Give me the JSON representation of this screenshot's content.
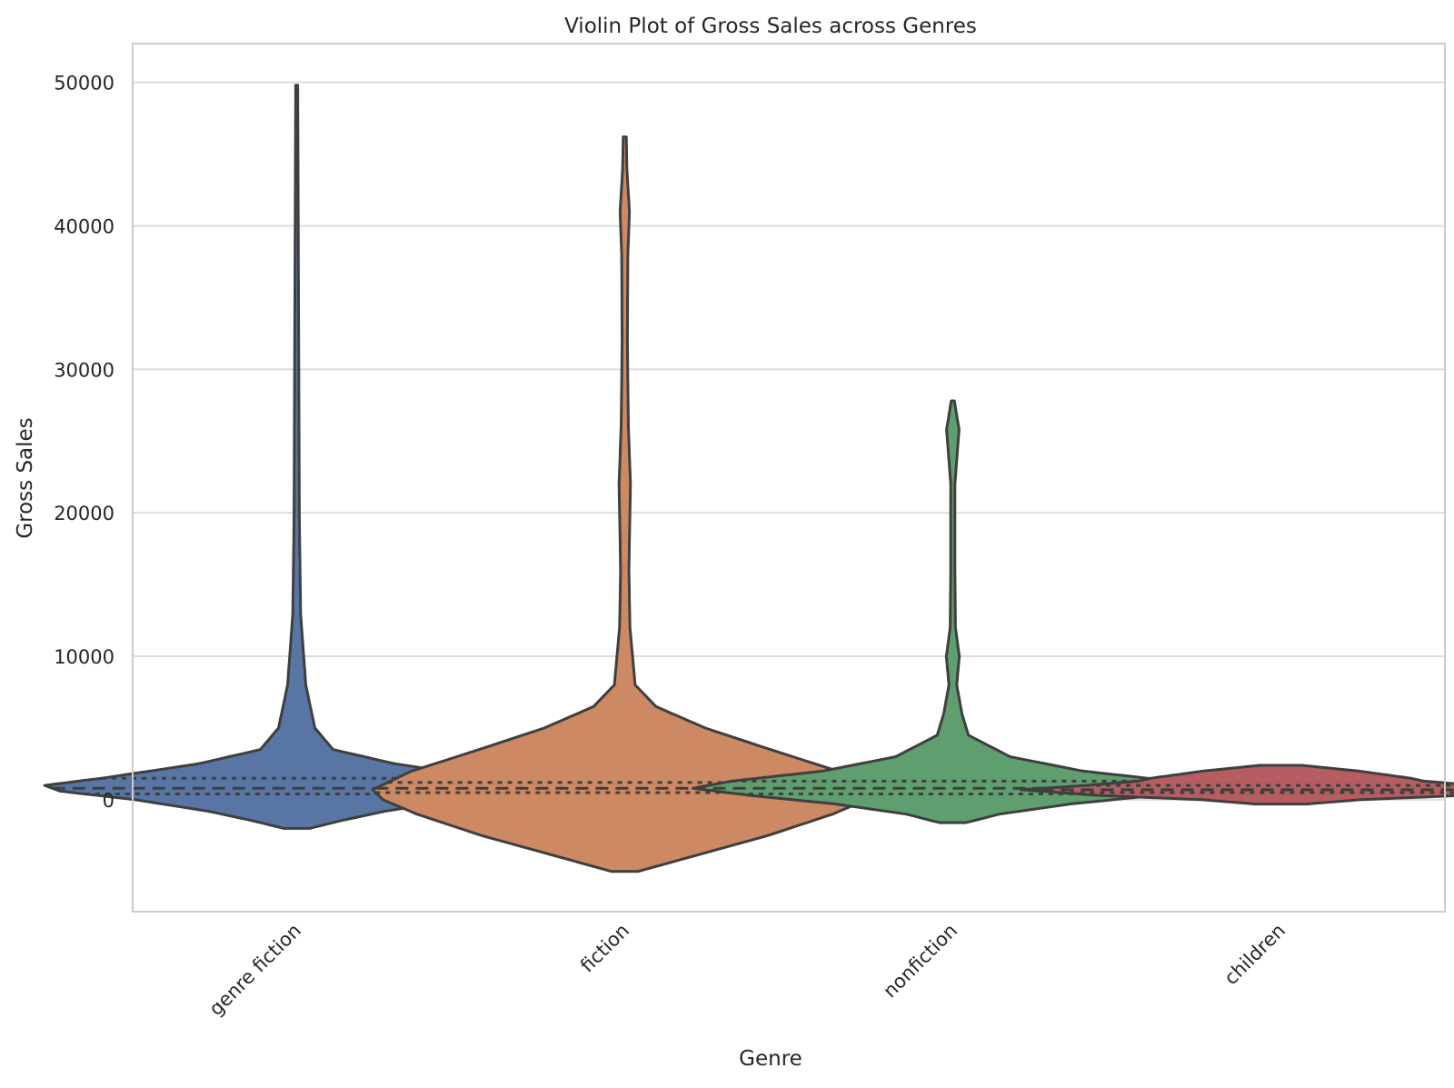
{
  "chart_data": {
    "type": "violin",
    "title": "Violin Plot of Gross Sales across Genres",
    "xlabel": "Genre",
    "ylabel": "Gross Sales",
    "ylim": [
      -7800,
      52700
    ],
    "yticks": [
      0,
      10000,
      20000,
      30000,
      40000,
      50000
    ],
    "grid": "horizontal",
    "inner": "quartile",
    "categories": [
      "genre fiction",
      "fiction",
      "nonfiction",
      "children"
    ],
    "series": [
      {
        "category": "genre fiction",
        "color": "#5875a4",
        "range": [
          -2000,
          49800
        ],
        "quartiles": [
          400,
          800,
          1500
        ],
        "profile": [
          [
            -2000,
            0.05
          ],
          [
            -1500,
            0.16
          ],
          [
            -800,
            0.34
          ],
          [
            0,
            0.62
          ],
          [
            600,
            0.91
          ],
          [
            1000,
            0.97
          ],
          [
            1500,
            0.75
          ],
          [
            2500,
            0.38
          ],
          [
            3500,
            0.14
          ],
          [
            5000,
            0.07
          ],
          [
            8000,
            0.035
          ],
          [
            13000,
            0.015
          ],
          [
            20000,
            0.01
          ],
          [
            30000,
            0.008
          ],
          [
            40000,
            0.006
          ],
          [
            49800,
            0.004
          ]
        ]
      },
      {
        "category": "fiction",
        "color": "#cc8963",
        "range": [
          -5000,
          46200
        ],
        "quartiles": [
          500,
          800,
          1200
        ],
        "profile": [
          [
            -5000,
            0.05
          ],
          [
            -4000,
            0.25
          ],
          [
            -2500,
            0.55
          ],
          [
            -1000,
            0.8
          ],
          [
            0,
            0.93
          ],
          [
            700,
            0.97
          ],
          [
            2000,
            0.82
          ],
          [
            3500,
            0.56
          ],
          [
            5000,
            0.31
          ],
          [
            6500,
            0.12
          ],
          [
            8000,
            0.04
          ],
          [
            12000,
            0.02
          ],
          [
            16000,
            0.016
          ],
          [
            22000,
            0.022
          ],
          [
            26000,
            0.014
          ],
          [
            32000,
            0.01
          ],
          [
            38000,
            0.012
          ],
          [
            41000,
            0.018
          ],
          [
            44000,
            0.008
          ],
          [
            46200,
            0.006
          ]
        ]
      },
      {
        "category": "nonfiction",
        "color": "#5f9e6e",
        "range": [
          -1600,
          27800
        ],
        "quartiles": [
          400,
          800,
          1300
        ],
        "profile": [
          [
            -1600,
            0.05
          ],
          [
            -1000,
            0.18
          ],
          [
            -300,
            0.45
          ],
          [
            300,
            0.78
          ],
          [
            800,
            1.0
          ],
          [
            1300,
            0.85
          ],
          [
            2000,
            0.5
          ],
          [
            3000,
            0.22
          ],
          [
            4500,
            0.06
          ],
          [
            6000,
            0.035
          ],
          [
            8000,
            0.015
          ],
          [
            10000,
            0.025
          ],
          [
            12000,
            0.01
          ],
          [
            16000,
            0.008
          ],
          [
            22000,
            0.008
          ],
          [
            25800,
            0.024
          ],
          [
            27800,
            0.006
          ]
        ]
      },
      {
        "category": "children",
        "color": "#b55d60",
        "range": [
          -300,
          2400
        ],
        "quartiles": [
          500,
          700,
          1000
        ],
        "profile": [
          [
            -300,
            0.1
          ],
          [
            0,
            0.3
          ],
          [
            300,
            0.7
          ],
          [
            700,
            1.0
          ],
          [
            1000,
            0.75
          ],
          [
            1300,
            0.55
          ],
          [
            1500,
            0.5
          ],
          [
            1700,
            0.42
          ],
          [
            2000,
            0.3
          ],
          [
            2400,
            0.08
          ]
        ]
      }
    ]
  }
}
